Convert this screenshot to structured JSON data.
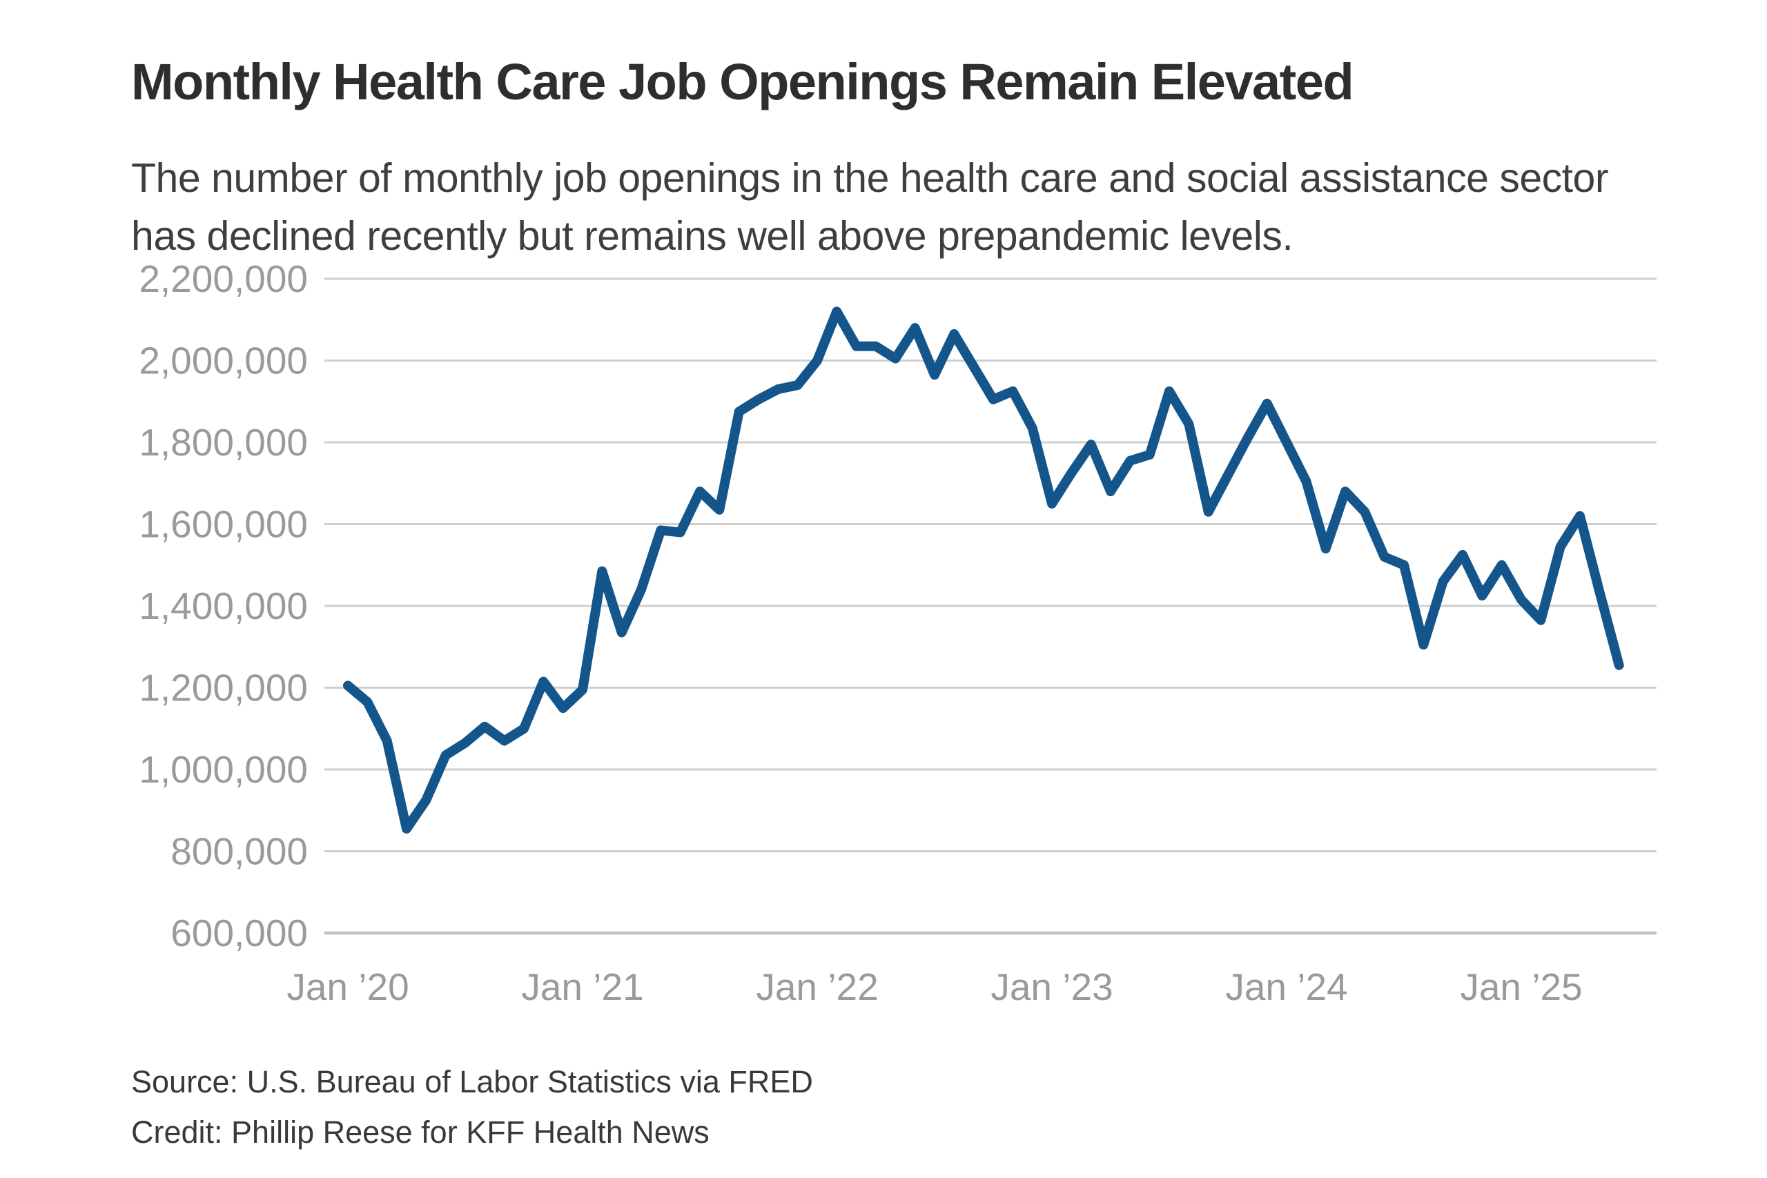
{
  "page": {
    "background": "#ffffff"
  },
  "header": {
    "title": "Monthly Health Care Job Openings Remain Elevated",
    "subtitle": "The number of monthly job openings in the health care and social assistance sector has declined recently but remains well above prepandemic levels."
  },
  "footer": {
    "source_label": "Source: U.S. Bureau of Labor Statistics via FRED",
    "credit_label": "Credit: Phillip Reese for KFF Health News"
  },
  "colors": {
    "line": "#14568c",
    "gridline": "#cfcfcf",
    "baseline": "#c2c2c2",
    "axis_label": "#9a9a9a",
    "title": "#2e2e2e",
    "subtitle": "#3e3e3e",
    "footer_text": "#393939"
  },
  "chart_data": {
    "type": "line",
    "title": "Monthly Health Care Job Openings Remain Elevated",
    "xlabel": "",
    "ylabel": "",
    "grid": true,
    "legend": "none",
    "ylim": [
      600000,
      2200000
    ],
    "ytick_step": 200000,
    "ytick_labels": [
      "600,000",
      "800,000",
      "1,000,000",
      "1,200,000",
      "1,400,000",
      "1,600,000",
      "1,800,000",
      "2,000,000",
      "2,200,000"
    ],
    "xtick_labels": [
      {
        "label": "Jan ’20",
        "month_index": 0
      },
      {
        "label": "Jan ’21",
        "month_index": 12
      },
      {
        "label": "Jan ’22",
        "month_index": 24
      },
      {
        "label": "Jan ’23",
        "month_index": 36
      },
      {
        "label": "Jan ’24",
        "month_index": 48
      },
      {
        "label": "Jan ’25",
        "month_index": 60
      }
    ],
    "series": [
      {
        "name": "Job openings, health care and social assistance sector",
        "months": [
          "2020-01",
          "2020-02",
          "2020-03",
          "2020-04",
          "2020-05",
          "2020-06",
          "2020-07",
          "2020-08",
          "2020-09",
          "2020-10",
          "2020-11",
          "2020-12",
          "2021-01",
          "2021-02",
          "2021-03",
          "2021-04",
          "2021-05",
          "2021-06",
          "2021-07",
          "2021-08",
          "2021-09",
          "2021-10",
          "2021-11",
          "2021-12",
          "2022-01",
          "2022-02",
          "2022-03",
          "2022-04",
          "2022-05",
          "2022-06",
          "2022-07",
          "2022-08",
          "2022-09",
          "2022-10",
          "2022-11",
          "2022-12",
          "2023-01",
          "2023-02",
          "2023-03",
          "2023-04",
          "2023-05",
          "2023-06",
          "2023-07",
          "2023-08",
          "2023-09",
          "2023-10",
          "2023-11",
          "2023-12",
          "2024-01",
          "2024-02",
          "2024-03",
          "2024-04",
          "2024-05",
          "2024-06",
          "2024-07",
          "2024-08",
          "2024-09",
          "2024-10",
          "2024-11",
          "2024-12",
          "2025-01",
          "2025-02",
          "2025-03",
          "2025-04",
          "2025-05",
          "2025-06"
        ],
        "values": [
          1205000,
          1165000,
          1070000,
          855000,
          925000,
          1035000,
          1065000,
          1105000,
          1070000,
          1100000,
          1215000,
          1150000,
          1195000,
          1485000,
          1335000,
          1440000,
          1585000,
          1580000,
          1680000,
          1635000,
          1875000,
          1905000,
          1930000,
          1940000,
          2000000,
          2120000,
          2035000,
          2035000,
          2005000,
          2080000,
          1965000,
          2065000,
          1985000,
          1905000,
          1925000,
          1835000,
          1650000,
          1725000,
          1795000,
          1680000,
          1755000,
          1770000,
          1925000,
          1845000,
          1630000,
          1720000,
          1810000,
          1895000,
          1800000,
          1705000,
          1540000,
          1680000,
          1630000,
          1520000,
          1500000,
          1305000,
          1460000,
          1525000,
          1425000,
          1500000,
          1415000,
          1365000,
          1545000,
          1620000,
          1435000,
          1255000
        ]
      }
    ]
  }
}
